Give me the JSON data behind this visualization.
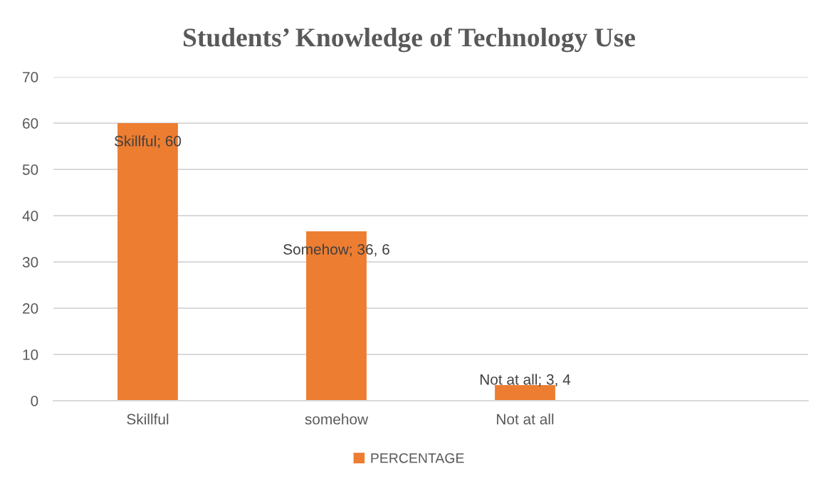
{
  "chart_data": {
    "type": "bar",
    "title": "Students’ Knowledge of Technology Use",
    "categories": [
      "Skillful",
      "somehow",
      "Not at all",
      null
    ],
    "series": [
      {
        "name": "PERCENTAGE",
        "color": "#ed7d31",
        "values": [
          60,
          36.6,
          3.4,
          null
        ],
        "value_labels": [
          "Skillful; 60",
          "Somehow; 36, 6",
          "Not at all; 3, 4",
          null
        ]
      }
    ],
    "ylim": [
      0,
      70
    ],
    "yticks": [
      0,
      10,
      20,
      30,
      40,
      50,
      60,
      70
    ],
    "grid": "y",
    "legend": "bottom"
  }
}
